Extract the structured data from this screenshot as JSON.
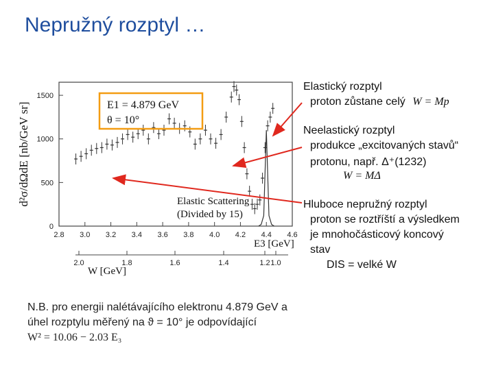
{
  "title": "Nepružný rozptyl …",
  "annotations": {
    "elastic_title": "Elastický rozptyl",
    "elastic_desc": "proton zůstane celý",
    "elastic_formula": "W = Mp",
    "inelastic_title": "Neelastický rozptyl",
    "inelastic_desc1": "produkce „excitovaných stavů“",
    "inelastic_desc2": "protonu, např. Δ⁺(1232)",
    "inelastic_formula": "W = MΔ",
    "dis_title": "Hluboce nepružný rozptyl",
    "dis_desc1": "proton se roztříští a výsledkem",
    "dis_desc2": "je mnohočásticový koncový",
    "dis_desc3": "stav",
    "dis_formula": "DIS = velké W"
  },
  "note": {
    "line1": "N.B. pro energii nalétávajícího elektronu 4.879 GeV a",
    "line2": "úhel rozptylu měřený na ϑ = 10° je odpovídající",
    "line3": "W² = 10.06 − 2.03 E₃"
  },
  "colors": {
    "title": "#1f4e9e",
    "box": "#f39c12",
    "arrow": "#e0281e",
    "data": "#333333"
  },
  "chart_data": {
    "type": "scatter",
    "ylabel": "d²σ/dΩdE [nb/GeV sr]",
    "xlabel": "E3 [GeV]",
    "secondary_xlabel": "W [GeV]",
    "xlim": [
      2.8,
      4.6
    ],
    "ylim": [
      0,
      1650
    ],
    "yticks": [
      "0",
      "500",
      "1000",
      "1500"
    ],
    "xticks": [
      "2.8",
      "3.0",
      "3.2",
      "3.4",
      "3.6",
      "3.8",
      "4.0",
      "4.2",
      "4.4",
      "4.6"
    ],
    "wticks": [
      "2.0",
      "1.8",
      "1.6",
      "1.4",
      "1.2",
      "1.0"
    ],
    "box_lines": [
      "E1 = 4.879 GeV",
      "θ = 10°"
    ],
    "elastic_label_1": "Elastic Scattering",
    "elastic_label_2": "(Divided by 15)",
    "series": [
      {
        "x": [
          2.93,
          2.97,
          3.01,
          3.05,
          3.09,
          3.13,
          3.17,
          3.21,
          3.25,
          3.29,
          3.33,
          3.37,
          3.41,
          3.45,
          3.49,
          3.53,
          3.57,
          3.61,
          3.65,
          3.69,
          3.73,
          3.77,
          3.81,
          3.85,
          3.89,
          3.93,
          3.97,
          4.01,
          4.05,
          4.09,
          4.13,
          4.15,
          4.17,
          4.19,
          4.21,
          4.23,
          4.25,
          4.27,
          4.29,
          4.31,
          4.33,
          4.35,
          4.37,
          4.39,
          4.41,
          4.43,
          4.45
        ],
        "y": [
          770,
          800,
          830,
          870,
          890,
          900,
          940,
          930,
          960,
          1000,
          1050,
          1020,
          1060,
          1100,
          1000,
          1130,
          1060,
          1100,
          1230,
          1180,
          1120,
          1150,
          1080,
          940,
          1000,
          1100,
          1000,
          950,
          1050,
          1250,
          1480,
          1600,
          1560,
          1450,
          1200,
          900,
          600,
          400,
          250,
          200,
          250,
          300,
          550,
          900,
          1150,
          1250,
          1350
        ]
      }
    ],
    "elastic_peak": {
      "x": [
        4.34,
        4.36,
        4.38,
        4.4,
        4.42,
        4.44,
        4.46
      ],
      "y": [
        0,
        20,
        120,
        1100,
        120,
        20,
        0
      ]
    }
  }
}
